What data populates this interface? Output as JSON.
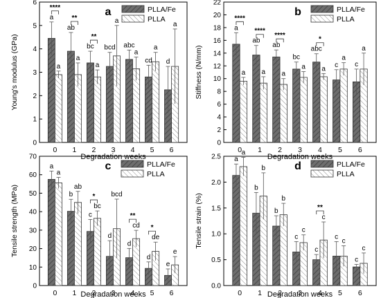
{
  "chart_data": [
    {
      "panel": "a",
      "type": "bar",
      "xlabel": "Degradation weeks",
      "ylabel": "Young's modulus (GPa)",
      "ylim": [
        0,
        6
      ],
      "yticks": [
        "0",
        "1",
        "2",
        "3",
        "4",
        "5",
        "6"
      ],
      "categories": [
        "0",
        "1",
        "2",
        "3",
        "4",
        "5",
        "6"
      ],
      "legend_position": "top-right",
      "series": [
        {
          "name": "PLLA/Fe",
          "values": [
            4.45,
            3.9,
            3.4,
            3.25,
            3.55,
            2.8,
            2.25
          ],
          "errors": [
            0.7,
            0.8,
            0.5,
            0.6,
            0.4,
            0.5,
            1.0
          ],
          "letters": [
            "a",
            "ab",
            "bc",
            "bcd",
            "abc",
            "cd",
            "d"
          ]
        },
        {
          "name": "PLLA",
          "values": [
            2.9,
            2.9,
            2.8,
            3.7,
            3.15,
            3.45,
            3.25
          ],
          "errors": [
            0.15,
            0.5,
            0.3,
            1.3,
            0.5,
            0.4,
            1.6
          ],
          "letters": [
            "a",
            "a",
            "a",
            "a",
            "a",
            "a",
            "a"
          ]
        }
      ],
      "significance": [
        {
          "category": "0",
          "label": "****"
        },
        {
          "category": "1",
          "label": "**"
        },
        {
          "category": "2",
          "label": "**"
        }
      ]
    },
    {
      "panel": "b",
      "type": "bar",
      "xlabel": "Degradation weeks",
      "ylabel": "Stiffness (N/mm)",
      "ylim": [
        0,
        22
      ],
      "yticks": [
        "0",
        "2",
        "4",
        "6",
        "8",
        "10",
        "12",
        "14",
        "16",
        "18",
        "20",
        "22"
      ],
      "categories": [
        "0",
        "1",
        "2",
        "3",
        "4",
        "5",
        "6"
      ],
      "legend_position": "top-right",
      "series": [
        {
          "name": "PLLA/Fe",
          "values": [
            15.4,
            13.7,
            13.4,
            11.5,
            12.6,
            9.8,
            9.5
          ],
          "errors": [
            1.8,
            1.5,
            1.1,
            1.1,
            1.3,
            1.6,
            2.0
          ],
          "letters": [
            "a",
            "ab",
            "ab",
            "bc",
            "abc",
            "c",
            "c"
          ]
        },
        {
          "name": "PLLA",
          "values": [
            9.6,
            9.3,
            9.1,
            10.2,
            10.3,
            11.5,
            11.5
          ],
          "errors": [
            0.6,
            1.0,
            0.9,
            0.9,
            0.5,
            1.0,
            2.5
          ],
          "letters": [
            "a",
            "a",
            "a",
            "a",
            "a",
            "a",
            "a"
          ]
        }
      ],
      "significance": [
        {
          "category": "0",
          "label": "****"
        },
        {
          "category": "1",
          "label": "****"
        },
        {
          "category": "2",
          "label": "****"
        },
        {
          "category": "4",
          "label": "*"
        }
      ]
    },
    {
      "panel": "c",
      "type": "bar",
      "xlabel": "Degradation weeks",
      "ylabel": "Tensile strength (MPa)",
      "ylim": [
        0,
        70
      ],
      "yticks": [
        "0",
        "10",
        "20",
        "30",
        "40",
        "50",
        "60",
        "70"
      ],
      "categories": [
        "0",
        "1",
        "2",
        "3",
        "4",
        "5",
        "6"
      ],
      "legend_position": "top-right",
      "series": [
        {
          "name": "PLLA/Fe",
          "values": [
            57.5,
            40.2,
            29.3,
            15.8,
            15.1,
            9.3,
            5.5
          ],
          "errors": [
            4.5,
            6.5,
            6.5,
            8.5,
            5.0,
            3.5,
            3.5
          ],
          "letters": [
            "a",
            "b",
            "c",
            "d",
            "d",
            "d",
            "e"
          ]
        },
        {
          "name": "PLLA",
          "values": [
            55.6,
            45.0,
            36.4,
            30.8,
            25.4,
            18.5,
            11.2
          ],
          "errors": [
            3.0,
            6.0,
            4.0,
            16.0,
            4.5,
            5.0,
            4.5
          ],
          "letters": [
            "a",
            "ab",
            "bc",
            "bcd",
            "cd",
            "de",
            "e"
          ]
        }
      ],
      "significance": [
        {
          "category": "2",
          "label": "*"
        },
        {
          "category": "4",
          "label": "**"
        },
        {
          "category": "5",
          "label": "*"
        }
      ]
    },
    {
      "panel": "d",
      "type": "bar",
      "xlabel": "Degradation weeks",
      "ylabel": "Tensile strain (%)",
      "ylim": [
        0,
        2.5
      ],
      "yticks": [
        "0.0",
        "0.5",
        "1.0",
        "1.5",
        "2.0",
        "2.5"
      ],
      "categories": [
        "0",
        "1",
        "2",
        "3",
        "4",
        "5",
        "6"
      ],
      "legend_position": "top-right",
      "series": [
        {
          "name": "PLLA/Fe",
          "values": [
            2.13,
            1.4,
            1.15,
            0.65,
            0.5,
            0.57,
            0.36
          ],
          "errors": [
            0.22,
            0.4,
            0.2,
            0.2,
            0.1,
            0.28,
            0.05
          ],
          "letters": [
            "a",
            "b",
            "b",
            "c",
            "c",
            "c",
            "c"
          ]
        },
        {
          "name": "PLLA",
          "values": [
            2.3,
            1.73,
            1.37,
            0.83,
            0.88,
            0.57,
            0.43
          ],
          "errors": [
            0.18,
            0.45,
            0.22,
            0.15,
            0.35,
            0.2,
            0.2
          ],
          "letters": [
            "a",
            "b",
            "b",
            "c",
            "c",
            "c",
            "c"
          ]
        }
      ],
      "significance": [
        {
          "category": "4",
          "label": "**"
        }
      ]
    }
  ]
}
